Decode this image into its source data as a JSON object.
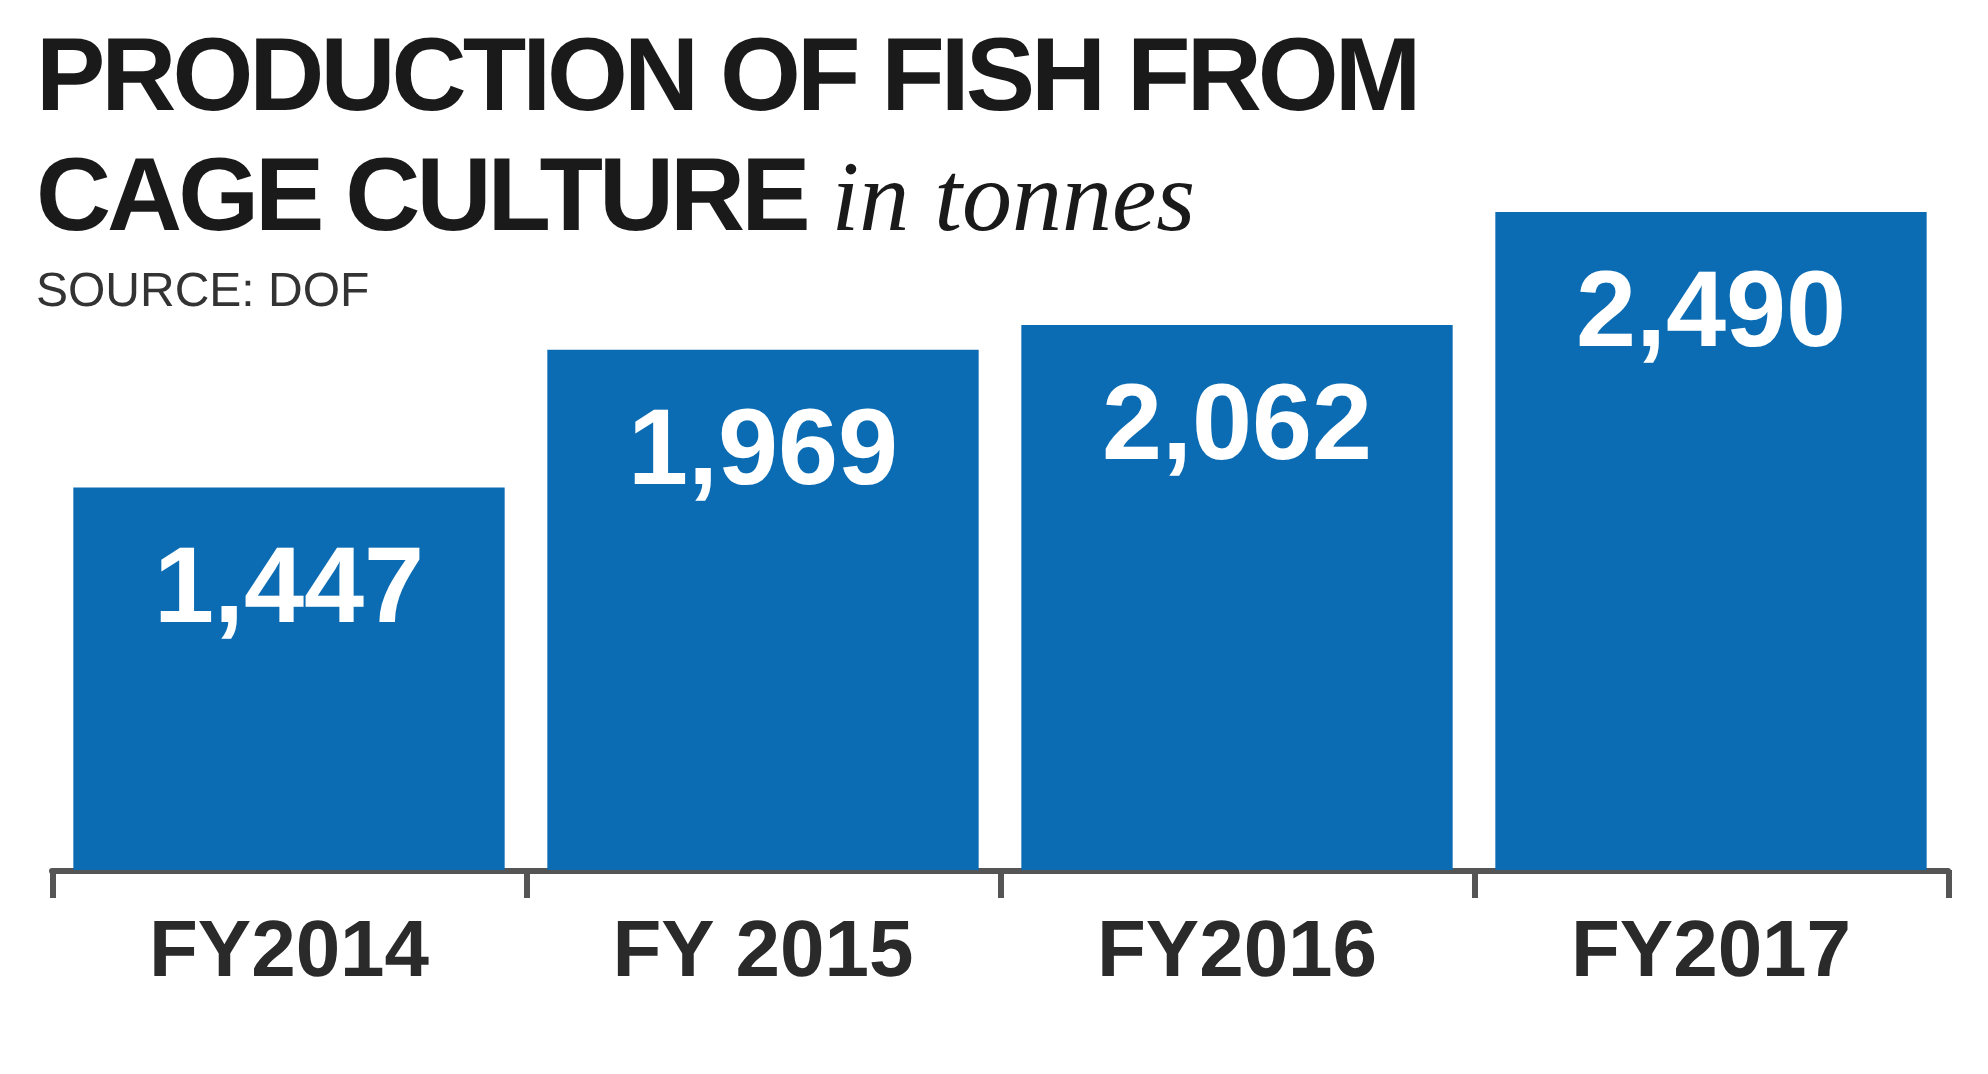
{
  "chart_data": {
    "type": "bar",
    "title": "PRODUCTION OF FISH FROM CAGE CULTURE",
    "subtitle": "in tonnes",
    "annotations": [
      "SOURCE: DOF"
    ],
    "categories": [
      "FY2014",
      "FY 2015",
      "FY2016",
      "FY2017"
    ],
    "values": [
      1447,
      1969,
      2062,
      2490
    ],
    "color": "#0b6cb4",
    "value_labels": [
      "1,447",
      "1,969",
      "2,062",
      "2,490"
    ],
    "grid": false
  }
}
